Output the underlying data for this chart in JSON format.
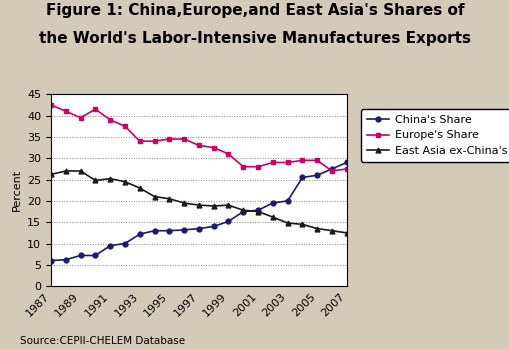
{
  "years": [
    1987,
    1988,
    1989,
    1990,
    1991,
    1992,
    1993,
    1994,
    1995,
    1996,
    1997,
    1998,
    1999,
    2000,
    2001,
    2002,
    2003,
    2004,
    2005,
    2006,
    2007
  ],
  "china": [
    6.0,
    6.2,
    7.2,
    7.2,
    9.5,
    10.0,
    12.2,
    13.0,
    13.0,
    13.2,
    13.5,
    14.0,
    15.2,
    17.5,
    17.8,
    19.5,
    20.0,
    25.5,
    26.0,
    27.5,
    29.0
  ],
  "europe": [
    42.5,
    41.0,
    39.5,
    41.5,
    39.0,
    37.5,
    34.0,
    34.0,
    34.5,
    34.5,
    33.0,
    32.5,
    31.0,
    28.0,
    28.0,
    29.0,
    29.0,
    29.5,
    29.5,
    27.0,
    27.5
  ],
  "east_asia": [
    26.2,
    27.0,
    27.0,
    24.8,
    25.2,
    24.5,
    23.0,
    21.0,
    20.5,
    19.5,
    19.0,
    18.8,
    19.0,
    17.8,
    17.5,
    16.2,
    14.8,
    14.5,
    13.5,
    13.0,
    12.5
  ],
  "china_color": "#1a1a6e",
  "europe_color": "#cc0066",
  "east_asia_color": "#1a1a1a",
  "background_color": "#d4cab8",
  "plot_bg_color": "#ffffff",
  "title_line1": "Figure 1: China,Europe,and East Asia's Shares of",
  "title_line2": "the World's Labor-Intensive Manufactures Exports",
  "ylabel": "Percent",
  "source": "Source:CEPII-CHELEM Database",
  "legend_labels": [
    "China's Share",
    "Europe's Share",
    "East Asia ex-China's Share"
  ],
  "ylim": [
    0,
    45
  ],
  "yticks": [
    0,
    5,
    10,
    15,
    20,
    25,
    30,
    35,
    40,
    45
  ],
  "title_fontsize": 11,
  "axis_fontsize": 8,
  "legend_fontsize": 8,
  "source_fontsize": 7.5
}
